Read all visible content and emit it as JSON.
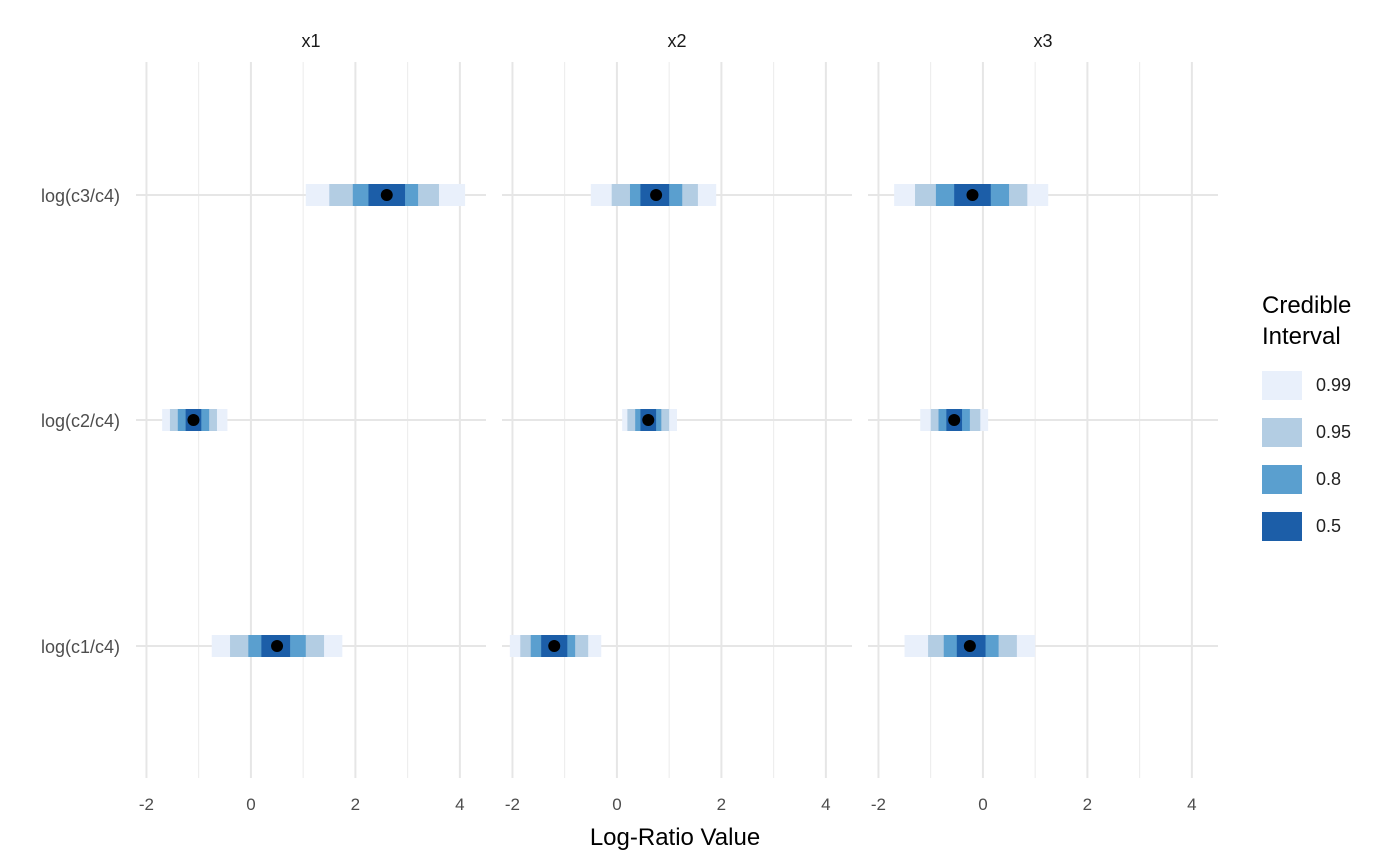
{
  "chart_data": {
    "type": "interval",
    "xlabel": "Log-Ratio Value",
    "xlim": [
      -2.2,
      4.5
    ],
    "x_ticks": [
      -2,
      0,
      2,
      4
    ],
    "x_tick_labels": [
      "-2",
      "0",
      "2",
      "4"
    ],
    "categories": [
      "log(c1/c4)",
      "log(c2/c4)",
      "log(c3/c4)"
    ],
    "grid": true,
    "legend_position": "right",
    "legend": {
      "title_lines": [
        "Credible",
        "Interval"
      ],
      "items": [
        {
          "label": "0.99",
          "color": "#e9f0fb"
        },
        {
          "label": "0.95",
          "color": "#b3cde3"
        },
        {
          "label": "0.8",
          "color": "#5a9fcf"
        },
        {
          "label": "0.5",
          "color": "#1c5ea8"
        }
      ]
    },
    "point_color": "#000000",
    "panels": [
      {
        "title": "x1",
        "rows": [
          {
            "category": "log(c1/c4)",
            "point": 0.5,
            "i99": [
              -0.75,
              1.75
            ],
            "i95": [
              -0.4,
              1.4
            ],
            "i80": [
              -0.05,
              1.05
            ],
            "i50": [
              0.2,
              0.75
            ]
          },
          {
            "category": "log(c2/c4)",
            "point": -1.1,
            "i99": [
              -1.7,
              -0.45
            ],
            "i95": [
              -1.55,
              -0.65
            ],
            "i80": [
              -1.4,
              -0.8
            ],
            "i50": [
              -1.25,
              -0.95
            ]
          },
          {
            "category": "log(c3/c4)",
            "point": 2.6,
            "i99": [
              1.05,
              4.1
            ],
            "i95": [
              1.5,
              3.6
            ],
            "i80": [
              1.95,
              3.2
            ],
            "i50": [
              2.25,
              2.95
            ]
          }
        ]
      },
      {
        "title": "x2",
        "rows": [
          {
            "category": "log(c1/c4)",
            "point": -1.2,
            "i99": [
              -2.05,
              -0.3
            ],
            "i95": [
              -1.85,
              -0.55
            ],
            "i80": [
              -1.65,
              -0.8
            ],
            "i50": [
              -1.45,
              -0.95
            ]
          },
          {
            "category": "log(c2/c4)",
            "point": 0.6,
            "i99": [
              0.1,
              1.15
            ],
            "i95": [
              0.2,
              1.0
            ],
            "i80": [
              0.35,
              0.85
            ],
            "i50": [
              0.45,
              0.75
            ]
          },
          {
            "category": "log(c3/c4)",
            "point": 0.75,
            "i99": [
              -0.5,
              1.9
            ],
            "i95": [
              -0.1,
              1.55
            ],
            "i80": [
              0.25,
              1.25
            ],
            "i50": [
              0.45,
              1.0
            ]
          }
        ]
      },
      {
        "title": "x3",
        "rows": [
          {
            "category": "log(c1/c4)",
            "point": -0.25,
            "i99": [
              -1.5,
              1.0
            ],
            "i95": [
              -1.05,
              0.65
            ],
            "i80": [
              -0.75,
              0.3
            ],
            "i50": [
              -0.5,
              0.05
            ]
          },
          {
            "category": "log(c2/c4)",
            "point": -0.55,
            "i99": [
              -1.2,
              0.1
            ],
            "i95": [
              -1.0,
              -0.05
            ],
            "i80": [
              -0.85,
              -0.25
            ],
            "i50": [
              -0.7,
              -0.4
            ]
          },
          {
            "category": "log(c3/c4)",
            "point": -0.2,
            "i99": [
              -1.7,
              1.25
            ],
            "i95": [
              -1.3,
              0.85
            ],
            "i80": [
              -0.9,
              0.5
            ],
            "i50": [
              -0.55,
              0.15
            ]
          }
        ]
      }
    ]
  }
}
